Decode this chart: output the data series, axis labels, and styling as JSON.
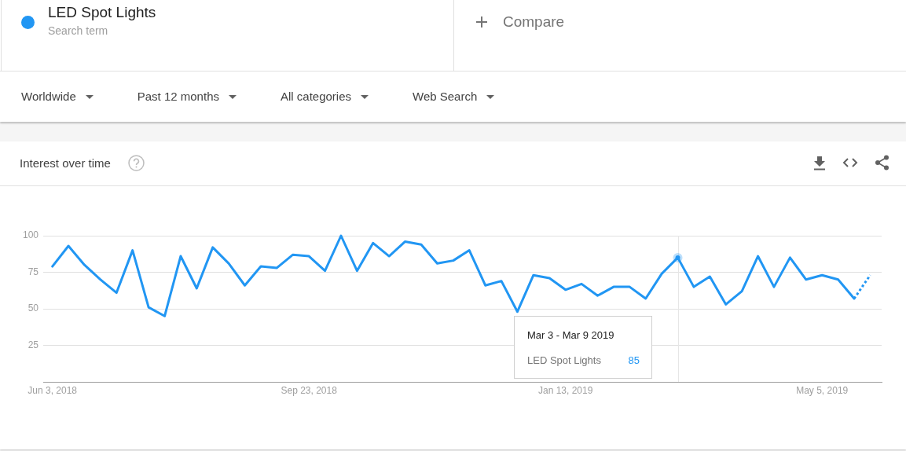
{
  "chart_data": {
    "type": "line",
    "title": "Interest over time",
    "x": [
      "2018-06-03",
      "2018-06-10",
      "2018-06-17",
      "2018-06-24",
      "2018-07-01",
      "2018-07-08",
      "2018-07-15",
      "2018-07-22",
      "2018-07-29",
      "2018-08-05",
      "2018-08-12",
      "2018-08-19",
      "2018-08-26",
      "2018-09-02",
      "2018-09-09",
      "2018-09-16",
      "2018-09-23",
      "2018-09-30",
      "2018-10-07",
      "2018-10-14",
      "2018-10-21",
      "2018-10-28",
      "2018-11-04",
      "2018-11-11",
      "2018-11-18",
      "2018-11-25",
      "2018-12-02",
      "2018-12-09",
      "2018-12-16",
      "2018-12-23",
      "2018-12-30",
      "2019-01-06",
      "2019-01-13",
      "2019-01-20",
      "2019-01-27",
      "2019-02-03",
      "2019-02-10",
      "2019-02-17",
      "2019-02-24",
      "2019-03-03",
      "2019-03-10",
      "2019-03-17",
      "2019-03-24",
      "2019-03-31",
      "2019-04-07",
      "2019-04-14",
      "2019-04-21",
      "2019-04-28",
      "2019-05-05",
      "2019-05-12",
      "2019-05-19",
      "2019-05-26"
    ],
    "series": [
      {
        "name": "LED Spot Lights",
        "color": "#2196f3",
        "values": [
          79,
          93,
          80,
          70,
          61,
          90,
          51,
          45,
          86,
          64,
          92,
          81,
          66,
          79,
          78,
          87,
          86,
          76,
          100,
          76,
          95,
          86,
          96,
          94,
          81,
          83,
          90,
          66,
          69,
          48,
          73,
          71,
          63,
          67,
          59,
          65,
          65,
          57,
          74,
          85,
          65,
          72,
          53,
          62,
          86,
          65,
          85,
          70,
          73,
          70,
          57,
          null
        ]
      },
      {
        "color": "#2196f3",
        "line_style": "dotted",
        "values": [
          null,
          null,
          null,
          null,
          null,
          null,
          null,
          null,
          null,
          null,
          null,
          null,
          null,
          null,
          null,
          null,
          null,
          null,
          null,
          null,
          null,
          null,
          null,
          null,
          null,
          null,
          null,
          null,
          null,
          null,
          null,
          null,
          null,
          null,
          null,
          null,
          null,
          null,
          null,
          null,
          null,
          null,
          null,
          null,
          null,
          null,
          null,
          null,
          null,
          null,
          57,
          73
        ]
      }
    ],
    "xlim": [
      "2018-05-30",
      "2019-05-31"
    ],
    "xticks": [
      {
        "value": "2018-06-03",
        "label": "Jun 3, 2018"
      },
      {
        "value": "2018-09-23",
        "label": "Sep 23, 2018"
      },
      {
        "value": "2019-01-13",
        "label": "Jan 13, 2019"
      },
      {
        "value": "2019-05-05",
        "label": "May 5, 2019"
      }
    ],
    "ylim": [
      0,
      100
    ],
    "yticks": [
      25,
      50,
      75,
      100
    ],
    "grid": "y",
    "legend": "top left",
    "ref_lines": [
      {
        "axis": "x",
        "value": "2019-03-03",
        "color": "#e6e6e6"
      }
    ],
    "annotations": [
      "Search term",
      "Compare",
      "Worldwide",
      "Past 12 months",
      "All categories",
      "Web Search",
      "Mar 3 - Mar 9 2019",
      "85"
    ]
  }
}
